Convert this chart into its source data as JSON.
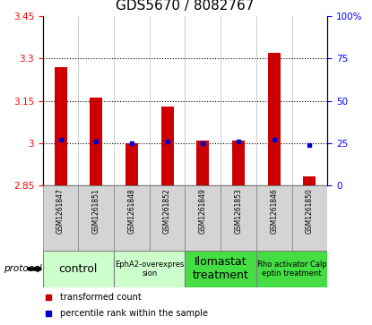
{
  "title": "GDS5670 / 8082767",
  "samples": [
    "GSM1261847",
    "GSM1261851",
    "GSM1261848",
    "GSM1261852",
    "GSM1261849",
    "GSM1261853",
    "GSM1261846",
    "GSM1261850"
  ],
  "red_values": [
    3.27,
    3.16,
    3.0,
    3.13,
    3.01,
    3.01,
    3.32,
    2.88
  ],
  "blue_values": [
    27,
    26,
    25,
    26,
    25,
    26,
    27,
    24
  ],
  "ylim_left": [
    2.85,
    3.45
  ],
  "ylim_right": [
    0,
    100
  ],
  "yticks_left": [
    2.85,
    3.0,
    3.15,
    3.3,
    3.45
  ],
  "yticks_right": [
    0,
    25,
    50,
    75,
    100
  ],
  "ytick_labels_left": [
    "2.85",
    "3",
    "3.15",
    "3.3",
    "3.45"
  ],
  "ytick_labels_right": [
    "0",
    "25",
    "50",
    "75",
    "100%"
  ],
  "dotted_lines": [
    3.0,
    3.15,
    3.3
  ],
  "groups": [
    {
      "label": "control",
      "cols": [
        0,
        1
      ],
      "color": "#ccffcc",
      "fontsize": 9
    },
    {
      "label": "EphA2-overexpres\nsion",
      "cols": [
        2,
        3
      ],
      "color": "#ccffcc",
      "fontsize": 6
    },
    {
      "label": "Ilomastat\ntreatment",
      "cols": [
        4,
        5
      ],
      "color": "#44dd44",
      "fontsize": 9
    },
    {
      "label": "Rho activator Calp\neptin treatment",
      "cols": [
        6,
        7
      ],
      "color": "#44dd44",
      "fontsize": 6
    }
  ],
  "protocol_label": "protocol",
  "legend_red": "transformed count",
  "legend_blue": "percentile rank within the sample",
  "bar_color": "#cc0000",
  "dot_color": "#0000cc",
  "bar_width": 0.35,
  "baseline": 2.85,
  "title_fontsize": 11,
  "names_bg": "#d4d4d4",
  "grid_color": "#bbbbbb"
}
